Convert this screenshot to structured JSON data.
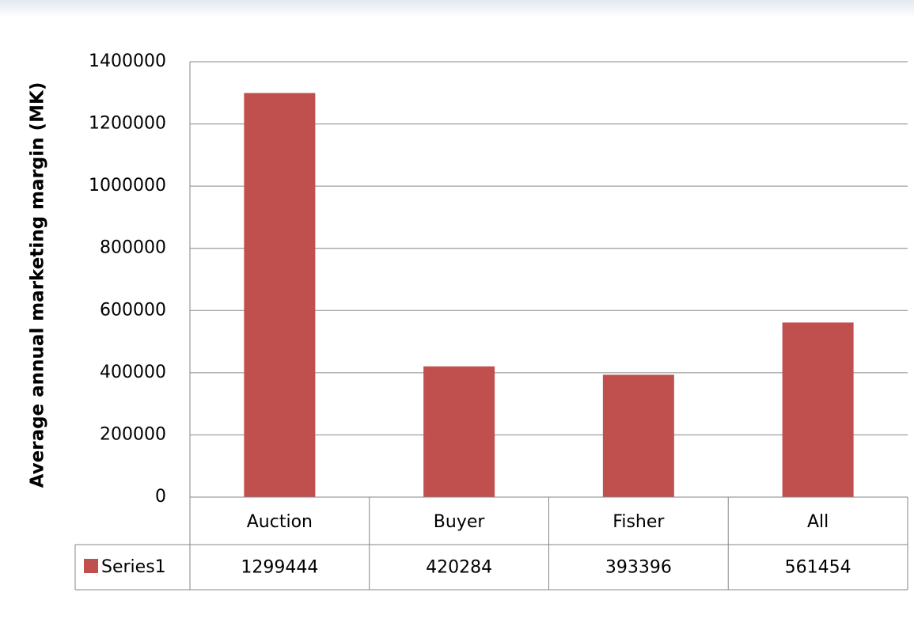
{
  "chart_data": {
    "type": "bar",
    "y_axis_label": "Average annual marketing margin (MK)",
    "categories": [
      "Auction",
      "Buyer",
      "Fisher",
      "All"
    ],
    "series": [
      {
        "name": "Series1",
        "color": "#c0504d",
        "values": [
          1299444,
          420284,
          393396,
          561454
        ]
      }
    ],
    "ylim": [
      0,
      1400000
    ],
    "yticks": [
      0,
      200000,
      400000,
      600000,
      800000,
      1000000,
      1200000,
      1400000
    ],
    "grid": true,
    "legend": "data-table"
  }
}
